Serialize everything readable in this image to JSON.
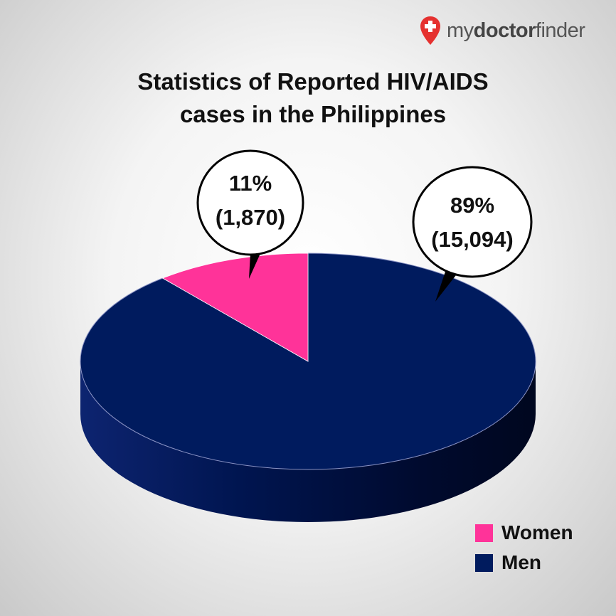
{
  "brand": {
    "prefix": "my",
    "bold": "doctor",
    "suffix": "finder",
    "icon": "map-pin-cross-icon",
    "icon_color": "#e5312f"
  },
  "title_lines": [
    "Statistics of Reported HIV/AIDS",
    "cases in the Philippines"
  ],
  "chart_data": {
    "type": "pie",
    "title": "Statistics of Reported HIV/AIDS cases in the Philippines",
    "slices": [
      {
        "label": "Women",
        "value": 1870,
        "percent": 11,
        "percent_label": "11%",
        "count_label": "(1,870)",
        "color": "#ff3399"
      },
      {
        "label": "Men",
        "value": 15094,
        "percent": 89,
        "percent_label": "89%",
        "count_label": "(15,094)",
        "color": "#001b5e"
      }
    ],
    "legend_position": "bottom-right",
    "three_d": true
  }
}
